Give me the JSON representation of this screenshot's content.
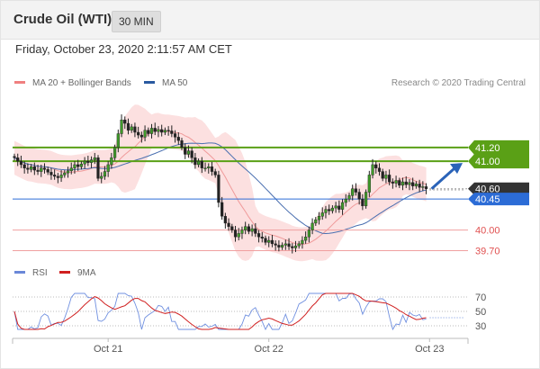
{
  "header": {
    "title": "Crude Oil (WTI)",
    "interval": "30 MIN"
  },
  "timestamp": "Friday, October 23, 2020 2:11:57 AM CET",
  "colors": {
    "green": "#5aa016",
    "blue": "#2c6cd6",
    "red": "#e05050",
    "dark": "#333333",
    "band": "#fbd5d5",
    "ma50": "#4a6fb0"
  },
  "chart_data": [
    {
      "type": "candlestick",
      "legend": [
        {
          "label": "MA 20 + Bollinger Bands",
          "color": "#f08080"
        },
        {
          "label": "MA 50",
          "color": "#2a5aa0"
        }
      ],
      "source": "Research © 2020 Trading Central",
      "ylim": [
        39.55,
        42.1
      ],
      "x_ticks": [
        {
          "label": "Oct 21",
          "index": 28
        },
        {
          "label": "Oct 22",
          "index": 76
        },
        {
          "label": "Oct 23",
          "index": 124
        }
      ],
      "levels": [
        {
          "value": 41.2,
          "label": "41.20",
          "style": "green-tag"
        },
        {
          "value": 41.0,
          "label": "41.00",
          "style": "green-tag"
        },
        {
          "value": 40.6,
          "label": "40.60",
          "style": "dark-tag"
        },
        {
          "value": 40.45,
          "label": "40.45",
          "style": "blue-tag"
        },
        {
          "value": 40.0,
          "label": "40.00",
          "style": "red-text"
        },
        {
          "value": 39.7,
          "label": "39.70",
          "style": "red-text"
        }
      ],
      "current_price": 40.6,
      "forecast_target": 41.0,
      "closes": [
        41.05,
        41.0,
        40.95,
        40.9,
        40.88,
        40.92,
        40.87,
        40.85,
        40.9,
        40.88,
        40.84,
        40.8,
        40.78,
        40.76,
        40.8,
        40.83,
        40.86,
        40.9,
        40.95,
        40.92,
        40.96,
        41.0,
        40.98,
        41.02,
        41.05,
        40.75,
        40.78,
        40.85,
        40.95,
        41.05,
        41.2,
        41.4,
        41.6,
        41.55,
        41.45,
        41.5,
        41.42,
        41.38,
        41.35,
        41.45,
        41.4,
        41.48,
        41.43,
        41.46,
        41.42,
        41.45,
        41.44,
        41.4,
        41.35,
        41.3,
        41.2,
        41.1,
        41.15,
        41.05,
        40.95,
        41.0,
        40.9,
        40.9,
        40.92,
        40.85,
        40.8,
        40.4,
        40.2,
        40.1,
        40.05,
        40.0,
        39.9,
        39.95,
        40.0,
        40.05,
        39.98,
        40.02,
        39.95,
        39.9,
        39.88,
        39.82,
        39.85,
        39.8,
        39.78,
        39.75,
        39.78,
        39.8,
        39.76,
        39.74,
        39.77,
        39.8,
        39.85,
        39.9,
        40.0,
        40.1,
        40.15,
        40.2,
        40.25,
        40.3,
        40.28,
        40.32,
        40.35,
        40.3,
        40.4,
        40.45,
        40.5,
        40.6,
        40.55,
        40.45,
        40.35,
        40.55,
        40.8,
        40.95,
        40.9,
        40.85,
        40.75,
        40.8,
        40.7,
        40.68,
        40.72,
        40.65,
        40.7,
        40.66,
        40.69,
        40.64,
        40.67,
        40.62,
        40.63,
        40.6
      ],
      "ma50_start": 41.0,
      "ma50_end": 40.4,
      "rsi": {
        "legend": [
          {
            "label": "RSI",
            "color": "#6a88d8"
          },
          {
            "label": "9MA",
            "color": "#d02020"
          }
        ],
        "levels": [
          70,
          50,
          30
        ],
        "ylim": [
          20,
          80
        ]
      }
    }
  ]
}
